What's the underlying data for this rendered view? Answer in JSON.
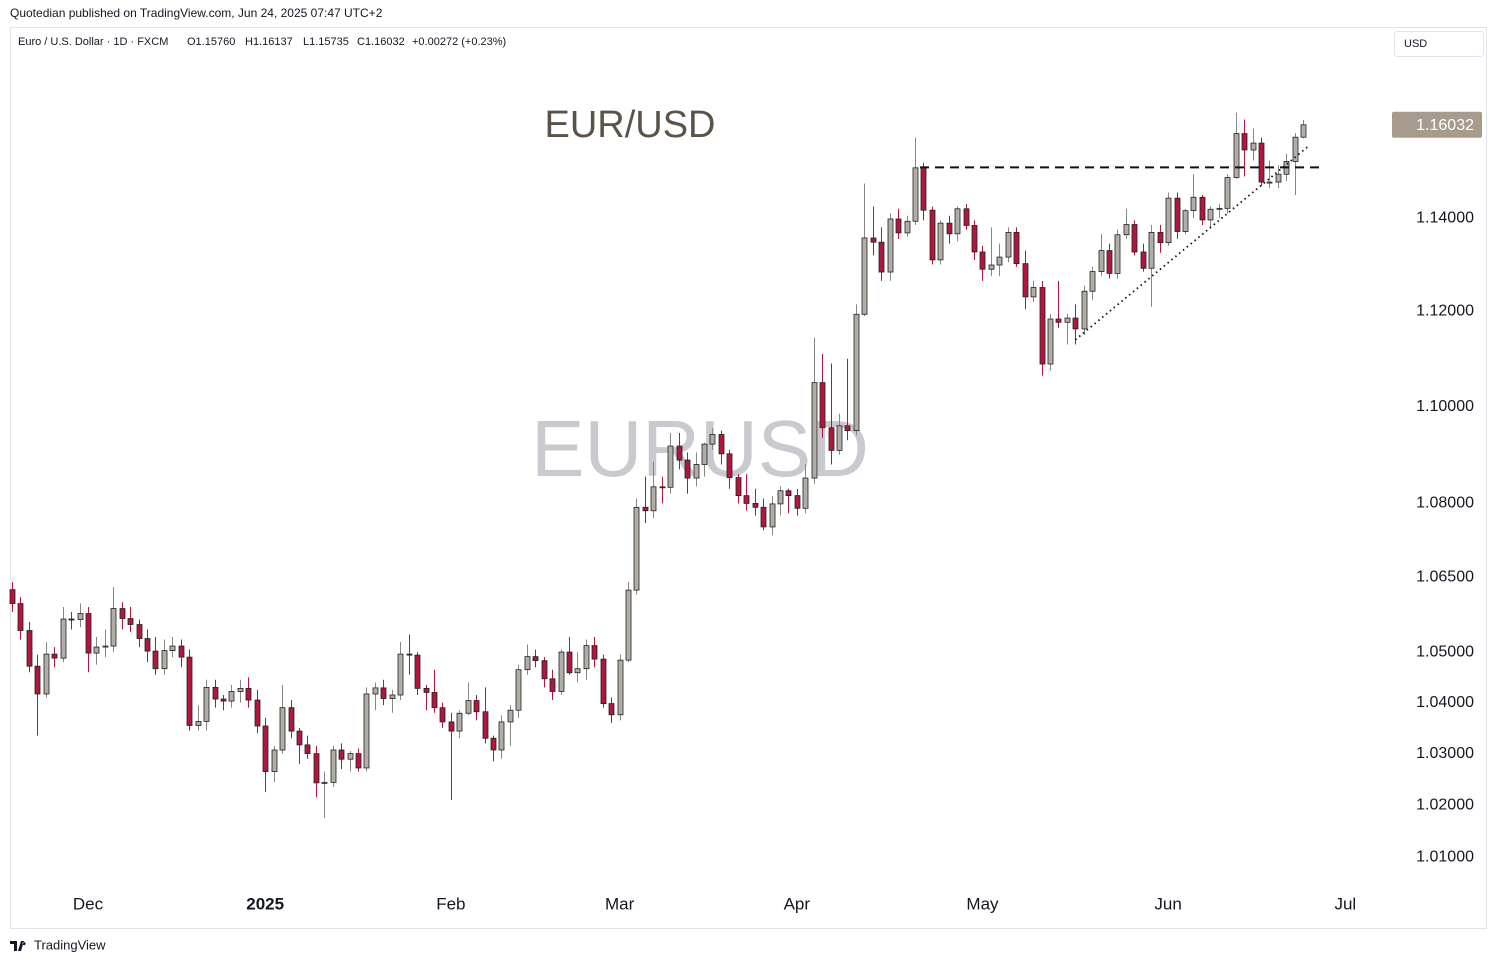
{
  "header": {
    "publisher": "Quotedian published on TradingView.com, Jun 24, 2025 07:47 UTC+2"
  },
  "legend": {
    "symbol": "Euro / U.S. Dollar · 1D · FXCM",
    "open": "O1.15760",
    "high": "H1.16137",
    "low": "L1.15735",
    "close": "C1.16032",
    "change": "+0.00272 (+0.23%)"
  },
  "currency_button": "USD",
  "footer": {
    "brand": "TradingView"
  },
  "chart_data": {
    "type": "candlestick",
    "title": "EUR/USD",
    "watermark": "EURUSD",
    "log_scale": true,
    "grid": false,
    "up_color": "#b3ada7",
    "down_color": "#b0163e",
    "up_wick_color": "#8a8580",
    "down_wick_color": "#b0163e",
    "xlim": [
      -0.24,
      162.7
    ],
    "ylim": [
      1.0041,
      1.1818
    ],
    "xticks": [
      {
        "value": 9,
        "label": "Dec"
      },
      {
        "value": 30,
        "label": "2025"
      },
      {
        "value": 52,
        "label": "Feb"
      },
      {
        "value": 72,
        "label": "Mar"
      },
      {
        "value": 93,
        "label": "Apr"
      },
      {
        "value": 115,
        "label": "May"
      },
      {
        "value": 137,
        "label": "Jun"
      },
      {
        "value": 158,
        "label": "Jul"
      }
    ],
    "yticks": [
      {
        "value": 1.14,
        "label": "1.14000"
      },
      {
        "value": 1.12,
        "label": "1.12000"
      },
      {
        "value": 1.1,
        "label": "1.10000"
      },
      {
        "value": 1.08,
        "label": "1.08000"
      },
      {
        "value": 1.065,
        "label": "1.06500"
      },
      {
        "value": 1.05,
        "label": "1.05000"
      },
      {
        "value": 1.04,
        "label": "1.04000"
      },
      {
        "value": 1.03,
        "label": "1.03000"
      },
      {
        "value": 1.02,
        "label": "1.02000"
      },
      {
        "value": 1.01,
        "label": "1.01000"
      }
    ],
    "last_price": {
      "value": 1.16032,
      "label": "1.16032"
    },
    "lines": [
      {
        "style": "dashed",
        "x": [
          107.6,
          155
        ],
        "y": [
          1.151,
          1.151
        ]
      },
      {
        "style": "dotted",
        "x": [
          126,
          153.8
        ],
        "y": [
          1.114,
          1.1559
        ]
      }
    ],
    "open": [
      1.0625,
      1.0597,
      1.0543,
      1.0472,
      1.0417,
      1.0496,
      1.0488,
      1.0566,
      1.0565,
      1.0577,
      1.0498,
      1.051,
      1.0512,
      1.0587,
      1.0567,
      1.0555,
      1.0527,
      1.0502,
      1.0467,
      1.0503,
      1.0512,
      1.049,
      1.0355,
      1.0363,
      1.043,
      1.0407,
      1.0403,
      1.0422,
      1.0428,
      1.0405,
      1.0354,
      1.0265,
      1.0307,
      1.039,
      1.0344,
      1.0317,
      1.03,
      1.0243,
      1.0244,
      1.0307,
      1.0289,
      1.03,
      1.0272,
      1.0417,
      1.0429,
      1.0408,
      1.0415,
      1.0496,
      1.0494,
      1.0428,
      1.042,
      1.039,
      1.0362,
      1.0344,
      1.0379,
      1.0404,
      1.0382,
      1.033,
      1.0307,
      1.0362,
      1.0385,
      1.0465,
      1.0491,
      1.0483,
      1.0447,
      1.0422,
      1.05,
      1.0459,
      1.0467,
      1.0513,
      1.0486,
      1.0398,
      1.0376,
      1.0484,
      1.0624,
      1.0792,
      1.0785,
      1.0834,
      1.0833,
      1.0918,
      1.0889,
      1.0852,
      1.088,
      1.0922,
      1.0942,
      1.0902,
      1.0853,
      1.0816,
      1.08,
      1.0792,
      1.0752,
      1.0799,
      1.0826,
      1.0816,
      1.079,
      1.0852,
      1.105,
      1.0956,
      1.0909,
      1.096,
      1.095,
      1.1194,
      1.1357,
      1.1348,
      1.1284,
      1.1398,
      1.1368,
      1.1393,
      1.1509,
      1.1417,
      1.131,
      1.1389,
      1.1366,
      1.142,
      1.1384,
      1.1327,
      1.129,
      1.1299,
      1.1316,
      1.1369,
      1.1302,
      1.1231,
      1.1251,
      1.1089,
      1.1184,
      1.1177,
      1.1186,
      1.1163,
      1.1243,
      1.1285,
      1.133,
      1.1281,
      1.1364,
      1.1386,
      1.1327,
      1.1292,
      1.1369,
      1.1347,
      1.1443,
      1.1371,
      1.1416,
      1.1445,
      1.1396,
      1.1419,
      1.1421,
      1.1488,
      1.1584,
      1.1548,
      1.1563,
      1.1478,
      1.1478,
      1.1495,
      1.1523,
      1.1576
    ],
    "high": [
      1.064,
      1.061,
      1.056,
      1.0495,
      1.052,
      1.051,
      1.059,
      1.058,
      1.0597,
      1.059,
      1.053,
      1.0545,
      1.063,
      1.06,
      1.059,
      1.0565,
      1.0545,
      1.053,
      1.0525,
      1.053,
      1.0525,
      1.0505,
      1.0395,
      1.0445,
      1.0445,
      1.0415,
      1.0435,
      1.0445,
      1.045,
      1.0425,
      1.037,
      1.0315,
      1.0435,
      1.0405,
      1.035,
      1.0335,
      1.0315,
      1.0265,
      1.0315,
      1.032,
      1.0305,
      1.031,
      1.043,
      1.044,
      1.0445,
      1.0425,
      1.052,
      1.0535,
      1.05,
      1.0435,
      1.0465,
      1.04,
      1.038,
      1.0385,
      1.044,
      1.0415,
      1.043,
      1.0335,
      1.0375,
      1.0395,
      1.0475,
      1.0515,
      1.0505,
      1.049,
      1.0465,
      1.0505,
      1.053,
      1.05,
      1.0525,
      1.053,
      1.0495,
      1.041,
      1.0495,
      1.064,
      1.081,
      1.0855,
      1.0885,
      1.0855,
      1.0945,
      1.0945,
      1.0905,
      1.0905,
      1.0925,
      1.0955,
      1.095,
      1.091,
      1.086,
      1.086,
      1.083,
      1.081,
      1.0815,
      1.0835,
      1.083,
      1.083,
      1.088,
      1.1145,
      1.111,
      1.109,
      1.0985,
      1.11,
      1.1215,
      1.1475,
      1.1425,
      1.138,
      1.141,
      1.142,
      1.1405,
      1.1575,
      1.152,
      1.1425,
      1.1395,
      1.1405,
      1.1425,
      1.143,
      1.1395,
      1.134,
      1.138,
      1.1345,
      1.138,
      1.138,
      1.133,
      1.1265,
      1.1265,
      1.1195,
      1.1265,
      1.1195,
      1.1215,
      1.1255,
      1.1295,
      1.1365,
      1.1345,
      1.1375,
      1.142,
      1.1395,
      1.1345,
      1.1385,
      1.1385,
      1.1455,
      1.1455,
      1.142,
      1.1495,
      1.145,
      1.1425,
      1.143,
      1.1495,
      1.163,
      1.1615,
      1.1595,
      1.1575,
      1.1525,
      1.1515,
      1.154,
      1.1585,
      1.16137
    ],
    "low": [
      1.058,
      1.0525,
      1.046,
      1.0335,
      1.041,
      1.047,
      1.048,
      1.0545,
      1.055,
      1.046,
      1.0475,
      1.049,
      1.05,
      1.0545,
      1.054,
      1.051,
      1.048,
      1.0455,
      1.0455,
      1.049,
      1.047,
      1.0345,
      1.0345,
      1.0345,
      1.039,
      1.0385,
      1.039,
      1.04,
      1.039,
      1.034,
      1.0225,
      1.0245,
      1.03,
      1.033,
      1.028,
      1.029,
      1.0215,
      1.0175,
      1.0235,
      1.027,
      1.0265,
      1.0265,
      1.0265,
      1.0385,
      1.0395,
      1.038,
      1.0405,
      1.0455,
      1.0415,
      1.0385,
      1.038,
      1.035,
      1.021,
      1.033,
      1.0375,
      1.0365,
      1.032,
      1.0285,
      1.029,
      1.0315,
      1.037,
      1.0455,
      1.047,
      1.043,
      1.0405,
      1.0415,
      1.0455,
      1.044,
      1.0445,
      1.047,
      1.039,
      1.036,
      1.0365,
      1.048,
      1.0615,
      1.076,
      1.077,
      1.08,
      1.082,
      1.087,
      1.082,
      1.0835,
      1.0855,
      1.091,
      1.088,
      1.083,
      1.08,
      1.0785,
      1.0775,
      1.0745,
      1.0735,
      1.0775,
      1.078,
      1.0775,
      1.078,
      1.084,
      1.0935,
      1.088,
      1.09,
      1.093,
      1.094,
      1.119,
      1.132,
      1.1265,
      1.1265,
      1.1355,
      1.136,
      1.1385,
      1.1395,
      1.13,
      1.13,
      1.1345,
      1.135,
      1.1375,
      1.131,
      1.1265,
      1.1275,
      1.1275,
      1.1305,
      1.1295,
      1.1205,
      1.122,
      1.1065,
      1.1075,
      1.1165,
      1.113,
      1.113,
      1.115,
      1.1225,
      1.1275,
      1.127,
      1.127,
      1.1355,
      1.132,
      1.1285,
      1.121,
      1.1325,
      1.134,
      1.1355,
      1.1365,
      1.14,
      1.1385,
      1.138,
      1.14,
      1.141,
      1.1485,
      1.149,
      1.1525,
      1.147,
      1.1465,
      1.1465,
      1.148,
      1.145,
      1.15735
    ],
    "close": [
      1.0597,
      1.0543,
      1.0472,
      1.0417,
      1.0496,
      1.0488,
      1.0566,
      1.0565,
      1.0577,
      1.0498,
      1.051,
      1.0512,
      1.0587,
      1.0567,
      1.0555,
      1.0527,
      1.0502,
      1.0467,
      1.0503,
      1.0512,
      1.049,
      1.0355,
      1.0363,
      1.043,
      1.0407,
      1.0403,
      1.0422,
      1.0428,
      1.0405,
      1.0354,
      1.0265,
      1.0307,
      1.039,
      1.0344,
      1.0317,
      1.03,
      1.0243,
      1.0244,
      1.0307,
      1.0289,
      1.03,
      1.0272,
      1.0417,
      1.0429,
      1.0408,
      1.0415,
      1.0496,
      1.0494,
      1.0428,
      1.042,
      1.039,
      1.0362,
      1.0344,
      1.0379,
      1.0404,
      1.0382,
      1.033,
      1.0307,
      1.0362,
      1.0385,
      1.0465,
      1.0491,
      1.0483,
      1.0447,
      1.0422,
      1.05,
      1.0459,
      1.0467,
      1.0513,
      1.0486,
      1.0398,
      1.0376,
      1.0484,
      1.0624,
      1.0792,
      1.0785,
      1.0834,
      1.0833,
      1.0918,
      1.0889,
      1.0852,
      1.088,
      1.0922,
      1.0942,
      1.0902,
      1.0853,
      1.0816,
      1.08,
      1.0792,
      1.0752,
      1.0799,
      1.0826,
      1.0816,
      1.079,
      1.0852,
      1.105,
      1.0956,
      1.0909,
      1.096,
      1.095,
      1.1194,
      1.1357,
      1.1348,
      1.1284,
      1.1398,
      1.1368,
      1.1393,
      1.1509,
      1.1417,
      1.131,
      1.1389,
      1.1366,
      1.142,
      1.1384,
      1.1327,
      1.129,
      1.1299,
      1.1316,
      1.1369,
      1.1302,
      1.1231,
      1.1251,
      1.1089,
      1.1184,
      1.1177,
      1.1186,
      1.1163,
      1.1243,
      1.1285,
      1.133,
      1.1281,
      1.1364,
      1.1386,
      1.1327,
      1.1292,
      1.1369,
      1.1347,
      1.1443,
      1.1371,
      1.1416,
      1.1445,
      1.1396,
      1.1419,
      1.1421,
      1.1488,
      1.1584,
      1.1548,
      1.1563,
      1.1478,
      1.1478,
      1.1495,
      1.1523,
      1.1576,
      1.16032
    ]
  }
}
